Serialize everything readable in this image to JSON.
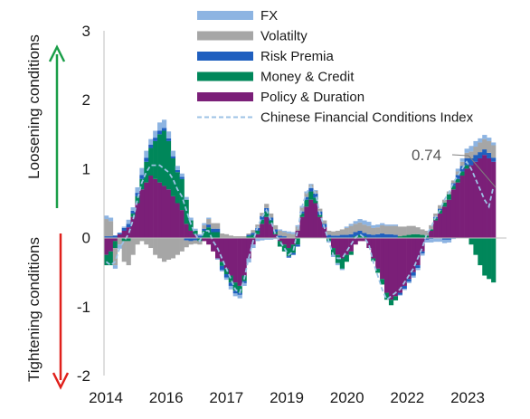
{
  "chart_data": {
    "type": "area",
    "title": "",
    "ylim": [
      -2,
      3
    ],
    "yticks": [
      "3",
      "2",
      "1",
      "0",
      "-1",
      "-2"
    ],
    "xtick_labels": [
      "2014",
      "2016",
      "2017",
      "2019",
      "2020",
      "2022",
      "2023"
    ],
    "x_range": [
      "2014",
      "2023"
    ],
    "grid": false,
    "legend_position": "top",
    "side_labels": {
      "upper": "Loosening conditions",
      "lower": "Tightening  conditions"
    },
    "annotation": {
      "text": "0.74",
      "value": 0.74
    },
    "series": [
      {
        "name": "FX",
        "color": "#8db4e2",
        "style": "stacked-bar",
        "values": [
          0.05,
          0.05,
          -0.05,
          -0.06,
          0.02,
          0.06,
          0.05,
          0.08,
          0.1,
          0.1,
          0.08,
          0.1,
          0.12,
          0.12,
          0.1,
          0.08,
          0.06,
          0.05,
          0.04,
          0.04,
          0.03,
          0.02,
          0.03,
          0.02,
          0.0,
          -0.02,
          -0.02,
          -0.03,
          -0.05,
          -0.04,
          -0.05,
          -0.04,
          -0.06,
          -0.05,
          -0.05,
          -0.04,
          -0.03,
          -0.03,
          -0.02,
          0.02,
          0.02,
          0.03,
          0.03,
          0.02,
          0.02,
          0.02,
          0.01,
          0.01,
          0.0,
          0.0,
          -0.02,
          -0.03,
          -0.03,
          -0.02,
          0.02,
          0.03,
          0.04,
          0.05,
          0.06,
          0.06,
          0.04,
          0.04,
          0.03,
          0.02,
          0.02,
          0.02,
          -0.01,
          -0.02,
          -0.02,
          -0.03,
          -0.03,
          -0.03,
          -0.04,
          -0.05,
          -0.06,
          -0.06,
          -0.05,
          -0.04,
          -0.02,
          0.04,
          0.05,
          0.06,
          0.08,
          0.08,
          0.06,
          0.06,
          0.05,
          0.04
        ]
      },
      {
        "name": "Volatilty",
        "color": "#a6a6a6",
        "style": "stacked-bar",
        "values": [
          0.25,
          0.22,
          -0.25,
          -0.1,
          -0.3,
          -0.35,
          -0.25,
          -0.1,
          -0.05,
          -0.1,
          -0.15,
          -0.25,
          -0.3,
          -0.35,
          -0.32,
          -0.3,
          -0.25,
          -0.2,
          -0.1,
          -0.05,
          -0.05,
          -0.05,
          0.05,
          0.08,
          0.08,
          0.08,
          0.06,
          0.05,
          0.03,
          0.02,
          0.02,
          0.02,
          0.02,
          0.04,
          0.05,
          0.05,
          0.06,
          0.06,
          0.06,
          0.07,
          0.06,
          0.06,
          0.05,
          0.06,
          0.06,
          0.06,
          0.05,
          0.04,
          0.04,
          0.05,
          0.06,
          0.06,
          0.07,
          0.08,
          0.1,
          0.12,
          0.12,
          0.12,
          0.12,
          0.12,
          0.1,
          0.1,
          0.12,
          0.12,
          0.12,
          0.13,
          0.14,
          0.13,
          0.13,
          0.12,
          0.1,
          0.08,
          0.07,
          0.06,
          0.05,
          0.05,
          0.04,
          0.04,
          0.04,
          0.05,
          0.06,
          0.08,
          0.1,
          0.12,
          0.14,
          0.15,
          0.17,
          0.18
        ]
      },
      {
        "name": "Risk Premia",
        "color": "#1f5fbf",
        "style": "stacked-bar",
        "values": [
          0.02,
          0.02,
          0.03,
          0.02,
          0.04,
          0.05,
          0.04,
          0.05,
          0.06,
          0.06,
          0.05,
          0.05,
          0.05,
          0.04,
          0.04,
          0.03,
          0.03,
          0.03,
          -0.04,
          -0.05,
          -0.04,
          0.03,
          0.03,
          0.04,
          0.05,
          0.05,
          -0.06,
          -0.05,
          -0.05,
          -0.04,
          -0.03,
          -0.03,
          0.02,
          0.03,
          0.04,
          0.05,
          0.05,
          0.04,
          0.04,
          0.03,
          0.02,
          -0.02,
          -0.03,
          -0.03,
          0.03,
          0.04,
          0.05,
          0.06,
          0.05,
          0.05,
          0.04,
          0.03,
          0.03,
          0.04,
          0.04,
          0.05,
          0.06,
          0.06,
          0.05,
          0.05,
          0.04,
          0.05,
          0.06,
          0.05,
          0.05,
          0.04,
          -0.03,
          -0.04,
          -0.04,
          -0.05,
          -0.04,
          -0.03,
          -0.03,
          -0.02,
          0.02,
          0.02,
          -0.03,
          -0.03,
          0.04,
          0.06,
          0.08,
          0.1,
          0.1,
          0.1,
          0.09,
          0.08,
          0.08,
          0.06
        ]
      },
      {
        "name": "Money & Credit",
        "color": "#00875a",
        "style": "stacked-bar",
        "values": [
          -0.15,
          -0.2,
          -0.1,
          0.0,
          -0.05,
          -0.05,
          0.05,
          0.1,
          0.15,
          0.3,
          0.4,
          0.55,
          0.7,
          0.8,
          0.7,
          0.55,
          0.45,
          0.45,
          0.35,
          0.15,
          0.05,
          -0.05,
          0.1,
          0.15,
          0.08,
          0.08,
          -0.06,
          -0.08,
          -0.1,
          -0.12,
          -0.1,
          -0.08,
          0.02,
          0.04,
          0.05,
          0.06,
          0.08,
          0.05,
          0.03,
          -0.08,
          -0.1,
          -0.12,
          -0.12,
          -0.1,
          0.05,
          0.1,
          0.12,
          0.08,
          0.03,
          0.0,
          -0.05,
          -0.1,
          -0.12,
          -0.15,
          -0.1,
          -0.05,
          0.02,
          0.04,
          0.02,
          0.0,
          -0.04,
          -0.06,
          -0.08,
          -0.1,
          -0.08,
          -0.06,
          0.02,
          0.03,
          0.04,
          0.05,
          0.05,
          0.04,
          0.03,
          0.02,
          0.03,
          0.05,
          0.06,
          0.08,
          0.05,
          0.05,
          0.06,
          0.05,
          -0.1,
          -0.25,
          -0.4,
          -0.55,
          -0.6,
          -0.65
        ]
      },
      {
        "name": "Policy & Duration",
        "color": "#7b1f78",
        "style": "stacked-bar",
        "values": [
          -0.25,
          -0.2,
          -0.05,
          0.05,
          0.1,
          0.15,
          0.3,
          0.5,
          0.7,
          0.8,
          0.9,
          0.85,
          0.8,
          0.75,
          0.7,
          0.6,
          0.5,
          0.4,
          0.2,
          0.1,
          0.05,
          0.0,
          -0.05,
          -0.1,
          -0.2,
          -0.3,
          -0.35,
          -0.45,
          -0.55,
          -0.65,
          -0.7,
          -0.55,
          -0.3,
          -0.1,
          0.05,
          0.2,
          0.3,
          0.2,
          0.05,
          -0.05,
          -0.1,
          -0.15,
          -0.1,
          0.1,
          0.3,
          0.45,
          0.55,
          0.5,
          0.3,
          0.15,
          0.0,
          -0.15,
          -0.25,
          -0.3,
          -0.25,
          -0.2,
          -0.1,
          -0.05,
          -0.05,
          -0.15,
          -0.3,
          -0.45,
          -0.6,
          -0.8,
          -0.9,
          -0.85,
          -0.8,
          -0.7,
          -0.6,
          -0.5,
          -0.4,
          -0.2,
          0.0,
          0.1,
          0.25,
          0.35,
          0.45,
          0.55,
          0.7,
          0.8,
          0.9,
          1.0,
          1.05,
          1.1,
          1.15,
          1.2,
          1.15,
          1.1
        ]
      },
      {
        "name": "Chinese Financial Conditions Index",
        "color": "#9dc3e6",
        "style": "dashed-line",
        "values": [
          -0.35,
          -0.4,
          -0.35,
          -0.15,
          -0.05,
          0.05,
          0.25,
          0.55,
          0.8,
          0.95,
          1.05,
          1.05,
          1.05,
          1.0,
          0.95,
          0.85,
          0.7,
          0.6,
          0.4,
          0.2,
          0.05,
          -0.05,
          0.1,
          0.1,
          -0.05,
          -0.15,
          -0.3,
          -0.45,
          -0.6,
          -0.75,
          -0.8,
          -0.6,
          -0.3,
          -0.05,
          0.15,
          0.3,
          0.4,
          0.25,
          0.05,
          -0.05,
          -0.15,
          -0.25,
          -0.2,
          0.1,
          0.45,
          0.65,
          0.75,
          0.65,
          0.35,
          0.15,
          -0.05,
          -0.25,
          -0.3,
          -0.3,
          -0.2,
          -0.1,
          0.0,
          0.05,
          0.0,
          -0.1,
          -0.35,
          -0.55,
          -0.75,
          -0.9,
          -0.85,
          -0.8,
          -0.75,
          -0.65,
          -0.55,
          -0.45,
          -0.3,
          -0.15,
          0.05,
          0.15,
          0.3,
          0.4,
          0.55,
          0.65,
          0.8,
          0.9,
          1.0,
          1.1,
          1.0,
          0.85,
          0.7,
          0.55,
          0.45,
          0.74
        ]
      }
    ]
  }
}
